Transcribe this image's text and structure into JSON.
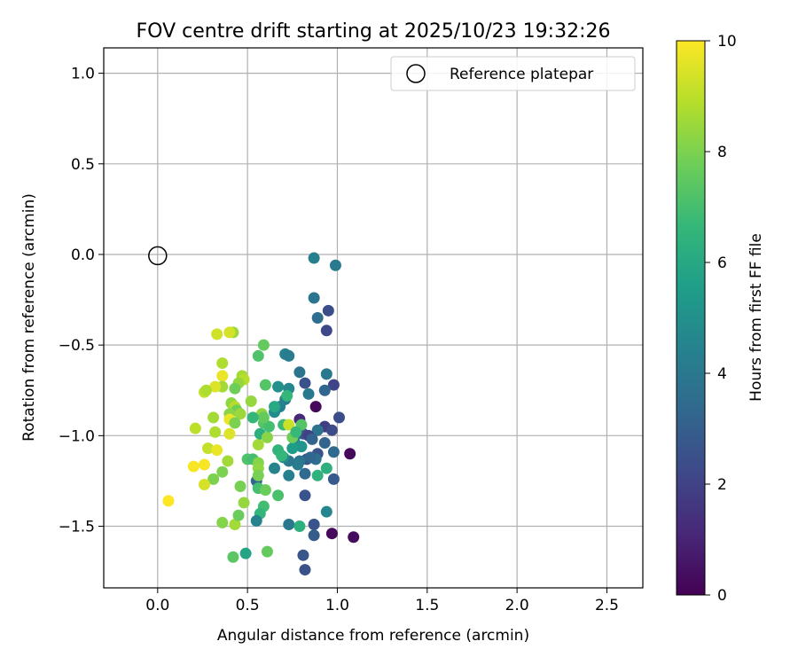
{
  "chart_data": {
    "type": "scatter",
    "title": "FOV centre drift starting at 2025/10/23 19:32:26",
    "xlabel": "Angular distance from reference (arcmin)",
    "ylabel": "Rotation from reference (arcmin)",
    "xlim": [
      -0.3,
      2.7
    ],
    "ylim": [
      -1.84,
      1.14
    ],
    "xticks": [
      0.0,
      0.5,
      1.0,
      1.5,
      2.0,
      2.5
    ],
    "xtick_labels": [
      "0.0",
      "0.5",
      "1.0",
      "1.5",
      "2.0",
      "2.5"
    ],
    "yticks": [
      1.0,
      0.5,
      0.0,
      -0.5,
      -1.0,
      -1.5
    ],
    "ytick_labels": [
      "1.0",
      "0.5",
      "0.0",
      "−0.5",
      "−1.0",
      "−1.5"
    ],
    "grid": true,
    "legend": {
      "position": "top-right",
      "entries": [
        "Reference platepar"
      ]
    },
    "reference_point": {
      "x": 0.0,
      "y": 0.0,
      "label": "Reference platepar"
    },
    "colorbar": {
      "label": "Hours from first FF file",
      "range": [
        0,
        10
      ],
      "ticks": [
        0,
        2,
        4,
        6,
        8,
        10
      ],
      "tick_labels": [
        "0",
        "2",
        "4",
        "6",
        "8",
        "10"
      ],
      "colormap": "viridis",
      "stops": [
        "#440154",
        "#482878",
        "#3e4989",
        "#31688e",
        "#26828e",
        "#1f9e89",
        "#35b779",
        "#6ece58",
        "#b5de2b",
        "#fde725"
      ]
    },
    "points": [
      {
        "x": 0.87,
        "y": -0.02,
        "c": 4.3
      },
      {
        "x": 0.99,
        "y": -0.06,
        "c": 4.1
      },
      {
        "x": 0.87,
        "y": -0.24,
        "c": 3.9
      },
      {
        "x": 0.89,
        "y": -0.35,
        "c": 3.6
      },
      {
        "x": 0.95,
        "y": -0.31,
        "c": 2.4
      },
      {
        "x": 0.94,
        "y": -0.42,
        "c": 2.2
      },
      {
        "x": 0.71,
        "y": -0.55,
        "c": 4.4
      },
      {
        "x": 0.73,
        "y": -0.56,
        "c": 4.2
      },
      {
        "x": 0.79,
        "y": -0.65,
        "c": 3.8
      },
      {
        "x": 0.82,
        "y": -0.71,
        "c": 2.5
      },
      {
        "x": 0.94,
        "y": -0.66,
        "c": 4.0
      },
      {
        "x": 0.98,
        "y": -0.72,
        "c": 2.1
      },
      {
        "x": 0.93,
        "y": -0.75,
        "c": 3.3
      },
      {
        "x": 0.84,
        "y": -0.77,
        "c": 4.0
      },
      {
        "x": 0.73,
        "y": -0.74,
        "c": 4.6
      },
      {
        "x": 0.67,
        "y": -0.73,
        "c": 5.0
      },
      {
        "x": 0.71,
        "y": -0.8,
        "c": 4.2
      },
      {
        "x": 0.68,
        "y": -0.84,
        "c": 4.4
      },
      {
        "x": 0.65,
        "y": -0.87,
        "c": 4.8
      },
      {
        "x": 0.88,
        "y": -0.84,
        "c": 0.2
      },
      {
        "x": 1.01,
        "y": -0.9,
        "c": 2.4
      },
      {
        "x": 0.79,
        "y": -0.91,
        "c": 1.1
      },
      {
        "x": 0.93,
        "y": -0.95,
        "c": 1.8
      },
      {
        "x": 0.97,
        "y": -0.97,
        "c": 2.3
      },
      {
        "x": 0.89,
        "y": -0.97,
        "c": 3.8
      },
      {
        "x": 0.81,
        "y": -0.99,
        "c": 2.6
      },
      {
        "x": 0.84,
        "y": -1.0,
        "c": 2.0
      },
      {
        "x": 0.86,
        "y": -1.02,
        "c": 3.2
      },
      {
        "x": 0.76,
        "y": -1.02,
        "c": 4.6
      },
      {
        "x": 0.8,
        "y": -1.06,
        "c": 5.2
      },
      {
        "x": 0.75,
        "y": -1.07,
        "c": 5.5
      },
      {
        "x": 0.89,
        "y": -1.1,
        "c": 2.6
      },
      {
        "x": 0.98,
        "y": -1.09,
        "c": 3.4
      },
      {
        "x": 1.07,
        "y": -1.1,
        "c": 0.2
      },
      {
        "x": 0.93,
        "y": -1.04,
        "c": 3.2
      },
      {
        "x": 0.88,
        "y": -1.13,
        "c": 3.7
      },
      {
        "x": 0.83,
        "y": -1.13,
        "c": 2.7
      },
      {
        "x": 0.85,
        "y": -1.12,
        "c": 3.3
      },
      {
        "x": 0.79,
        "y": -1.14,
        "c": 3.8
      },
      {
        "x": 0.78,
        "y": -1.16,
        "c": 4.2
      },
      {
        "x": 0.73,
        "y": -1.14,
        "c": 4.0
      },
      {
        "x": 0.7,
        "y": -1.12,
        "c": 4.8
      },
      {
        "x": 0.94,
        "y": -1.18,
        "c": 6.3
      },
      {
        "x": 0.65,
        "y": -1.18,
        "c": 4.5
      },
      {
        "x": 0.67,
        "y": -1.08,
        "c": 6.5
      },
      {
        "x": 0.69,
        "y": -1.11,
        "c": 6.6
      },
      {
        "x": 0.82,
        "y": -1.21,
        "c": 3.4
      },
      {
        "x": 0.89,
        "y": -1.22,
        "c": 6.4
      },
      {
        "x": 0.98,
        "y": -1.24,
        "c": 2.8
      },
      {
        "x": 0.73,
        "y": -1.22,
        "c": 4.3
      },
      {
        "x": 0.55,
        "y": -1.25,
        "c": 3.2
      },
      {
        "x": 0.56,
        "y": -1.29,
        "c": 7.0
      },
      {
        "x": 0.6,
        "y": -1.3,
        "c": 7.7
      },
      {
        "x": 0.67,
        "y": -1.33,
        "c": 7.1
      },
      {
        "x": 0.82,
        "y": -1.33,
        "c": 2.6
      },
      {
        "x": 0.59,
        "y": -1.39,
        "c": 6.9
      },
      {
        "x": 0.57,
        "y": -1.43,
        "c": 6.6
      },
      {
        "x": 0.94,
        "y": -1.42,
        "c": 4.6
      },
      {
        "x": 0.55,
        "y": -1.47,
        "c": 4.5
      },
      {
        "x": 0.73,
        "y": -1.49,
        "c": 4.0
      },
      {
        "x": 0.79,
        "y": -1.5,
        "c": 6.3
      },
      {
        "x": 0.87,
        "y": -1.49,
        "c": 2.6
      },
      {
        "x": 0.87,
        "y": -1.55,
        "c": 2.9
      },
      {
        "x": 0.97,
        "y": -1.54,
        "c": 0.2
      },
      {
        "x": 1.09,
        "y": -1.56,
        "c": 0.3
      },
      {
        "x": 0.49,
        "y": -1.65,
        "c": 5.8
      },
      {
        "x": 0.61,
        "y": -1.64,
        "c": 7.6
      },
      {
        "x": 0.81,
        "y": -1.66,
        "c": 2.7
      },
      {
        "x": 0.82,
        "y": -1.74,
        "c": 2.5
      },
      {
        "x": 0.42,
        "y": -1.67,
        "c": 7.4
      },
      {
        "x": 0.36,
        "y": -1.48,
        "c": 8.1
      },
      {
        "x": 0.43,
        "y": -1.49,
        "c": 8.6
      },
      {
        "x": 0.45,
        "y": -1.44,
        "c": 7.7
      },
      {
        "x": 0.48,
        "y": -1.37,
        "c": 8.4
      },
      {
        "x": 0.46,
        "y": -1.28,
        "c": 7.9
      },
      {
        "x": 0.5,
        "y": -1.13,
        "c": 7.2
      },
      {
        "x": 0.53,
        "y": -1.13,
        "c": 7.0
      },
      {
        "x": 0.56,
        "y": -1.15,
        "c": 8.1
      },
      {
        "x": 0.56,
        "y": -1.18,
        "c": 8.3
      },
      {
        "x": 0.56,
        "y": -1.22,
        "c": 7.9
      },
      {
        "x": 0.56,
        "y": -1.05,
        "c": 8.6
      },
      {
        "x": 0.57,
        "y": -0.99,
        "c": 6.3
      },
      {
        "x": 0.61,
        "y": -1.01,
        "c": 8.2
      },
      {
        "x": 0.59,
        "y": -0.93,
        "c": 7.3
      },
      {
        "x": 0.62,
        "y": -0.95,
        "c": 7.0
      },
      {
        "x": 0.58,
        "y": -0.88,
        "c": 8.3
      },
      {
        "x": 0.59,
        "y": -0.9,
        "c": 7.6
      },
      {
        "x": 0.53,
        "y": -0.9,
        "c": 6.6
      },
      {
        "x": 0.52,
        "y": -0.81,
        "c": 8.4
      },
      {
        "x": 0.65,
        "y": -0.84,
        "c": 6.0
      },
      {
        "x": 0.7,
        "y": -0.94,
        "c": 6.8
      },
      {
        "x": 0.73,
        "y": -0.94,
        "c": 9.2
      },
      {
        "x": 0.72,
        "y": -0.78,
        "c": 6.6
      },
      {
        "x": 0.75,
        "y": -1.01,
        "c": 7.8
      },
      {
        "x": 0.8,
        "y": -0.94,
        "c": 7.3
      },
      {
        "x": 0.77,
        "y": -0.98,
        "c": 6.7
      },
      {
        "x": 0.6,
        "y": -0.72,
        "c": 7.3
      },
      {
        "x": 0.56,
        "y": -0.56,
        "c": 7.2
      },
      {
        "x": 0.59,
        "y": -0.5,
        "c": 7.6
      },
      {
        "x": 0.42,
        "y": -0.43,
        "c": 8.5
      },
      {
        "x": 0.4,
        "y": -0.43,
        "c": 9.4
      },
      {
        "x": 0.33,
        "y": -0.44,
        "c": 9.3
      },
      {
        "x": 0.36,
        "y": -0.6,
        "c": 8.8
      },
      {
        "x": 0.36,
        "y": -0.67,
        "c": 9.7
      },
      {
        "x": 0.47,
        "y": -0.67,
        "c": 8.6
      },
      {
        "x": 0.48,
        "y": -0.69,
        "c": 8.9
      },
      {
        "x": 0.45,
        "y": -0.71,
        "c": 8.4
      },
      {
        "x": 0.43,
        "y": -0.74,
        "c": 7.8
      },
      {
        "x": 0.36,
        "y": -0.73,
        "c": 8.6
      },
      {
        "x": 0.32,
        "y": -0.73,
        "c": 9.5
      },
      {
        "x": 0.26,
        "y": -0.76,
        "c": 9.1
      },
      {
        "x": 0.27,
        "y": -0.75,
        "c": 8.8
      },
      {
        "x": 0.41,
        "y": -0.82,
        "c": 8.3
      },
      {
        "x": 0.43,
        "y": -0.84,
        "c": 8.9
      },
      {
        "x": 0.44,
        "y": -0.86,
        "c": 7.8
      },
      {
        "x": 0.4,
        "y": -0.88,
        "c": 8.2
      },
      {
        "x": 0.46,
        "y": -0.88,
        "c": 8.5
      },
      {
        "x": 0.31,
        "y": -0.9,
        "c": 8.6
      },
      {
        "x": 0.4,
        "y": -0.91,
        "c": 9.7
      },
      {
        "x": 0.43,
        "y": -0.93,
        "c": 8.0
      },
      {
        "x": 0.21,
        "y": -0.96,
        "c": 9.0
      },
      {
        "x": 0.32,
        "y": -0.98,
        "c": 8.8
      },
      {
        "x": 0.4,
        "y": -0.99,
        "c": 9.5
      },
      {
        "x": 0.28,
        "y": -1.07,
        "c": 9.1
      },
      {
        "x": 0.33,
        "y": -1.08,
        "c": 9.7
      },
      {
        "x": 0.26,
        "y": -1.16,
        "c": 9.9
      },
      {
        "x": 0.2,
        "y": -1.17,
        "c": 9.9
      },
      {
        "x": 0.39,
        "y": -1.14,
        "c": 8.6
      },
      {
        "x": 0.36,
        "y": -1.2,
        "c": 8.0
      },
      {
        "x": 0.31,
        "y": -1.24,
        "c": 8.0
      },
      {
        "x": 0.26,
        "y": -1.27,
        "c": 9.4
      },
      {
        "x": 0.06,
        "y": -1.36,
        "c": 10.0
      }
    ]
  }
}
